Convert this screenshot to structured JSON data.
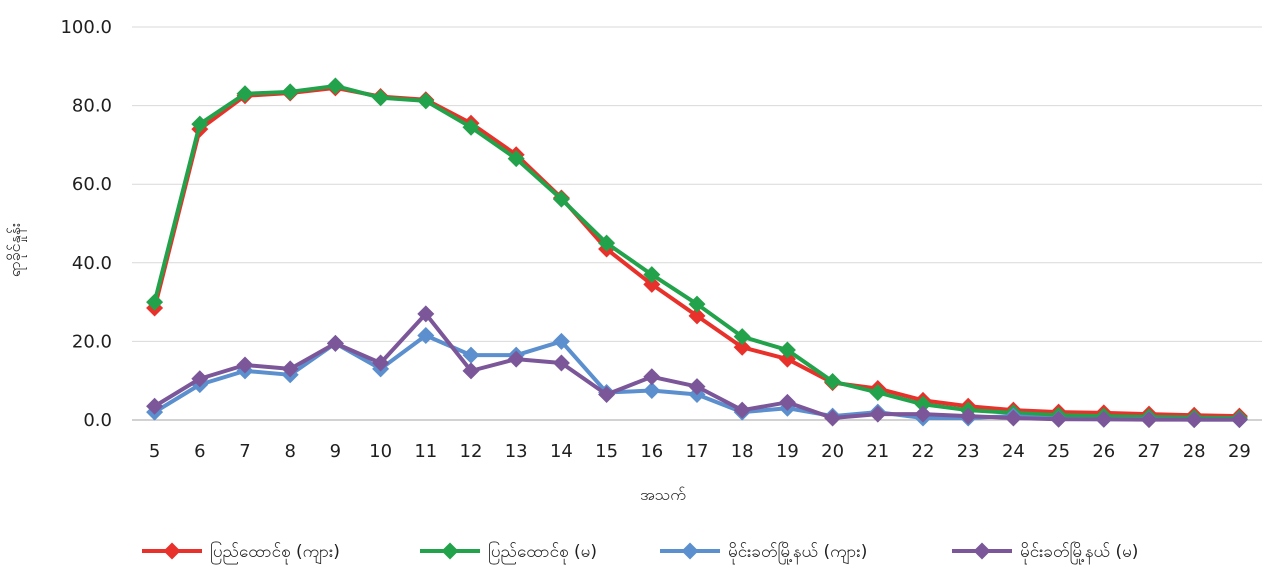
{
  "chart_data": {
    "type": "line",
    "title": "",
    "xlabel": "အသက်",
    "ylabel": "ရာခိုင်နှုန်း",
    "ylim": [
      0,
      100
    ],
    "y_ticks": [
      "0.0",
      "20.0",
      "40.0",
      "60.0",
      "80.0",
      "100.0"
    ],
    "x": [
      5,
      6,
      7,
      8,
      9,
      10,
      11,
      12,
      13,
      14,
      15,
      16,
      17,
      18,
      19,
      20,
      21,
      22,
      23,
      24,
      25,
      26,
      27,
      28,
      29
    ],
    "grid": true,
    "legend": "bottom",
    "series": [
      {
        "name": "ပြည်ထောင်စု (ကျား)",
        "color": "#e8312a",
        "values": [
          28.5,
          74.0,
          82.5,
          83.2,
          84.5,
          82.3,
          81.5,
          75.5,
          67.5,
          56.5,
          43.5,
          34.5,
          26.5,
          18.5,
          15.5,
          9.5,
          8.0,
          5.0,
          3.5,
          2.5,
          2.0,
          1.8,
          1.5,
          1.2,
          1.0
        ]
      },
      {
        "name": "ပြည်ထောင်စု (မ)",
        "color": "#22a24a",
        "values": [
          30.0,
          75.3,
          83.0,
          83.5,
          85.0,
          82.0,
          81.2,
          74.5,
          66.5,
          56.2,
          45.0,
          37.0,
          29.5,
          21.2,
          17.8,
          9.8,
          7.0,
          4.0,
          2.5,
          1.8,
          1.2,
          1.0,
          0.8,
          0.6,
          0.5
        ]
      },
      {
        "name": "မိုင်းခတ်မြို့နယ် (ကျား)",
        "color": "#5b8fce",
        "values": [
          2.0,
          9.0,
          12.5,
          11.5,
          19.5,
          13.0,
          21.5,
          16.5,
          16.5,
          20.0,
          7.0,
          7.5,
          6.5,
          2.0,
          3.0,
          1.0,
          2.0,
          0.5,
          0.5,
          1.0,
          0.3,
          0.2,
          0.2,
          0.1,
          0.1
        ]
      },
      {
        "name": "မိုင်းခတ်မြို့နယ် (မ)",
        "color": "#7b5799",
        "values": [
          3.5,
          10.5,
          14.0,
          13.0,
          19.5,
          14.5,
          27.0,
          12.5,
          15.5,
          14.5,
          6.5,
          11.0,
          8.5,
          2.5,
          4.5,
          0.5,
          1.5,
          1.5,
          1.0,
          0.5,
          0.2,
          0.2,
          0.1,
          0.1,
          0.1
        ]
      }
    ]
  }
}
